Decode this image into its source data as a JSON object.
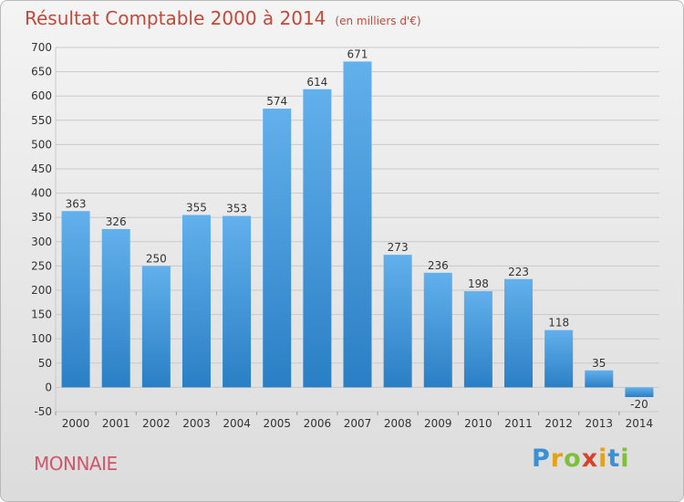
{
  "header": {
    "title": "Résultat Comptable 2000 à 2014",
    "unit": "(en milliers d'€)"
  },
  "footer": {
    "location": "MONNAIE",
    "logo_letters": [
      "P",
      "r",
      "o",
      "x",
      "i",
      "t",
      "i"
    ],
    "logo_colors": [
      "#3b8fd3",
      "#e2a21a",
      "#7fbf3c",
      "#d9412c",
      "#e2a21a",
      "#3b8fd3",
      "#7fbf3c"
    ]
  },
  "colors": {
    "bar_light": "#62b0ec",
    "bar_dark": "#2a7fc4",
    "grid": "#c9c9c9",
    "axis_text": "#333333"
  },
  "chart_data": {
    "type": "bar",
    "title": "Résultat Comptable 2000 à 2014",
    "xlabel": "",
    "ylabel": "",
    "categories": [
      "2000",
      "2001",
      "2002",
      "2003",
      "2004",
      "2005",
      "2006",
      "2007",
      "2008",
      "2009",
      "2010",
      "2011",
      "2012",
      "2013",
      "2014"
    ],
    "values": [
      363,
      326,
      250,
      355,
      353,
      574,
      614,
      671,
      273,
      236,
      198,
      223,
      118,
      35,
      -20
    ],
    "ylim": [
      -50,
      700
    ],
    "yticks": [
      -50,
      0,
      50,
      100,
      150,
      200,
      250,
      300,
      350,
      400,
      450,
      500,
      550,
      600,
      650,
      700
    ],
    "grid": true,
    "legend": "none"
  }
}
